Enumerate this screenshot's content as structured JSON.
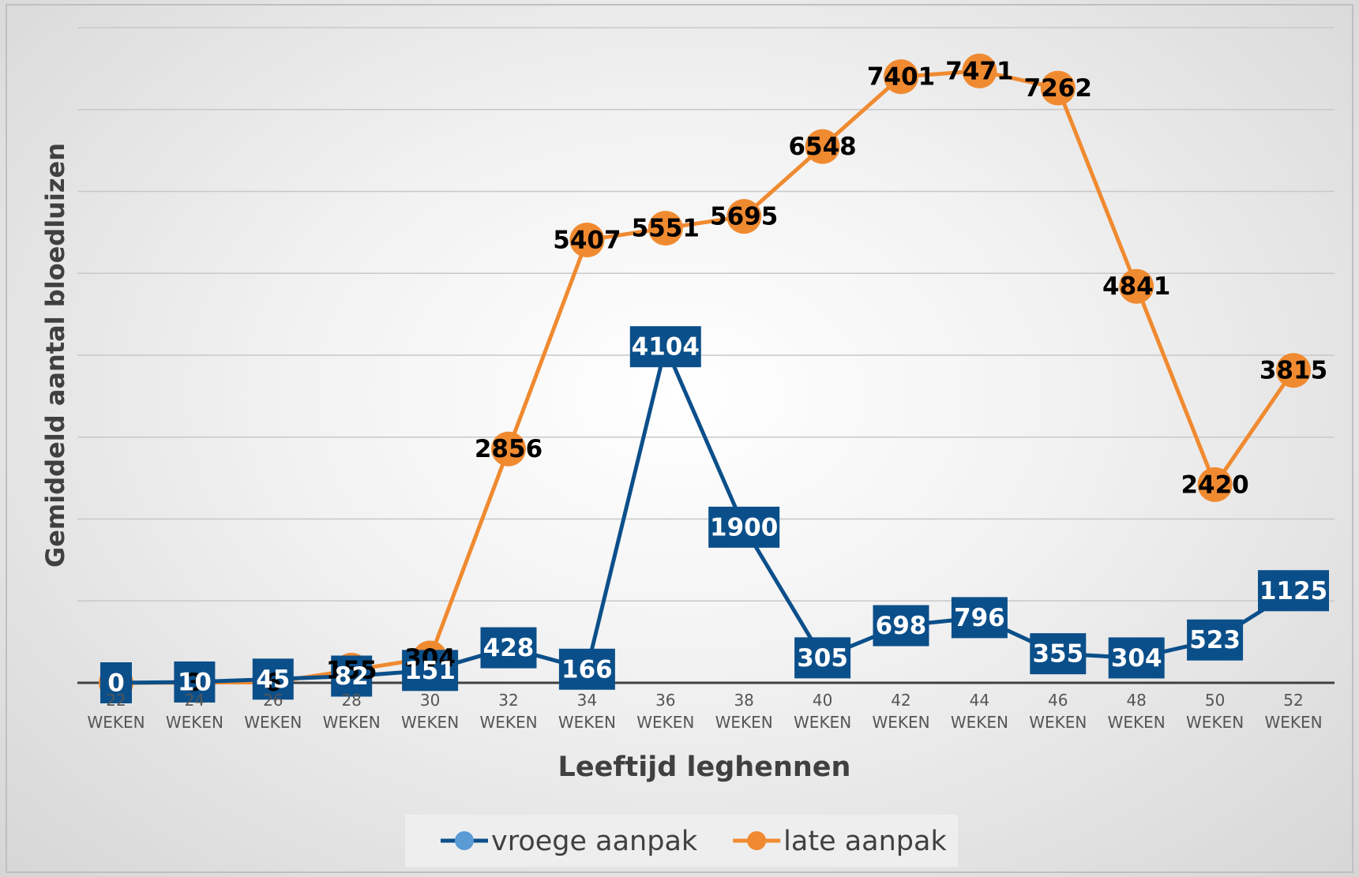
{
  "chart_data": {
    "type": "line",
    "x_label": "Leeftijd leghennen",
    "y_label": "Gemiddeld aantal bloedluizen",
    "categories": [
      "22 WEKEN",
      "24 WEKEN",
      "26 WEKEN",
      "28 WEKEN",
      "30 WEKEN",
      "32 WEKEN",
      "34 WEKEN",
      "36 WEKEN",
      "38 WEKEN",
      "40 WEKEN",
      "42 WEKEN",
      "44 WEKEN",
      "46 WEKEN",
      "48 WEKEN",
      "50 WEKEN",
      "52 WEKEN"
    ],
    "series": [
      {
        "name": "vroege aanpak",
        "color": "#0b4f8a",
        "legend_color": "#5b9bd5",
        "marker": "square",
        "values": [
          0,
          10,
          45,
          82,
          151,
          428,
          166,
          4104,
          1900,
          305,
          698,
          796,
          355,
          304,
          523,
          1125
        ]
      },
      {
        "name": "late aanpak",
        "color": "#f08a30",
        "legend_color": "#f08a30",
        "marker": "circle",
        "values": [
          0,
          3,
          6,
          155,
          304,
          2856,
          5407,
          5551,
          5695,
          6548,
          7401,
          7471,
          7262,
          4841,
          2420,
          3815
        ]
      }
    ],
    "ylim": [
      0,
      8000
    ],
    "yticks": [
      0,
      1000,
      2000,
      3000,
      4000,
      5000,
      6000,
      7000,
      8000
    ],
    "grid": true
  }
}
